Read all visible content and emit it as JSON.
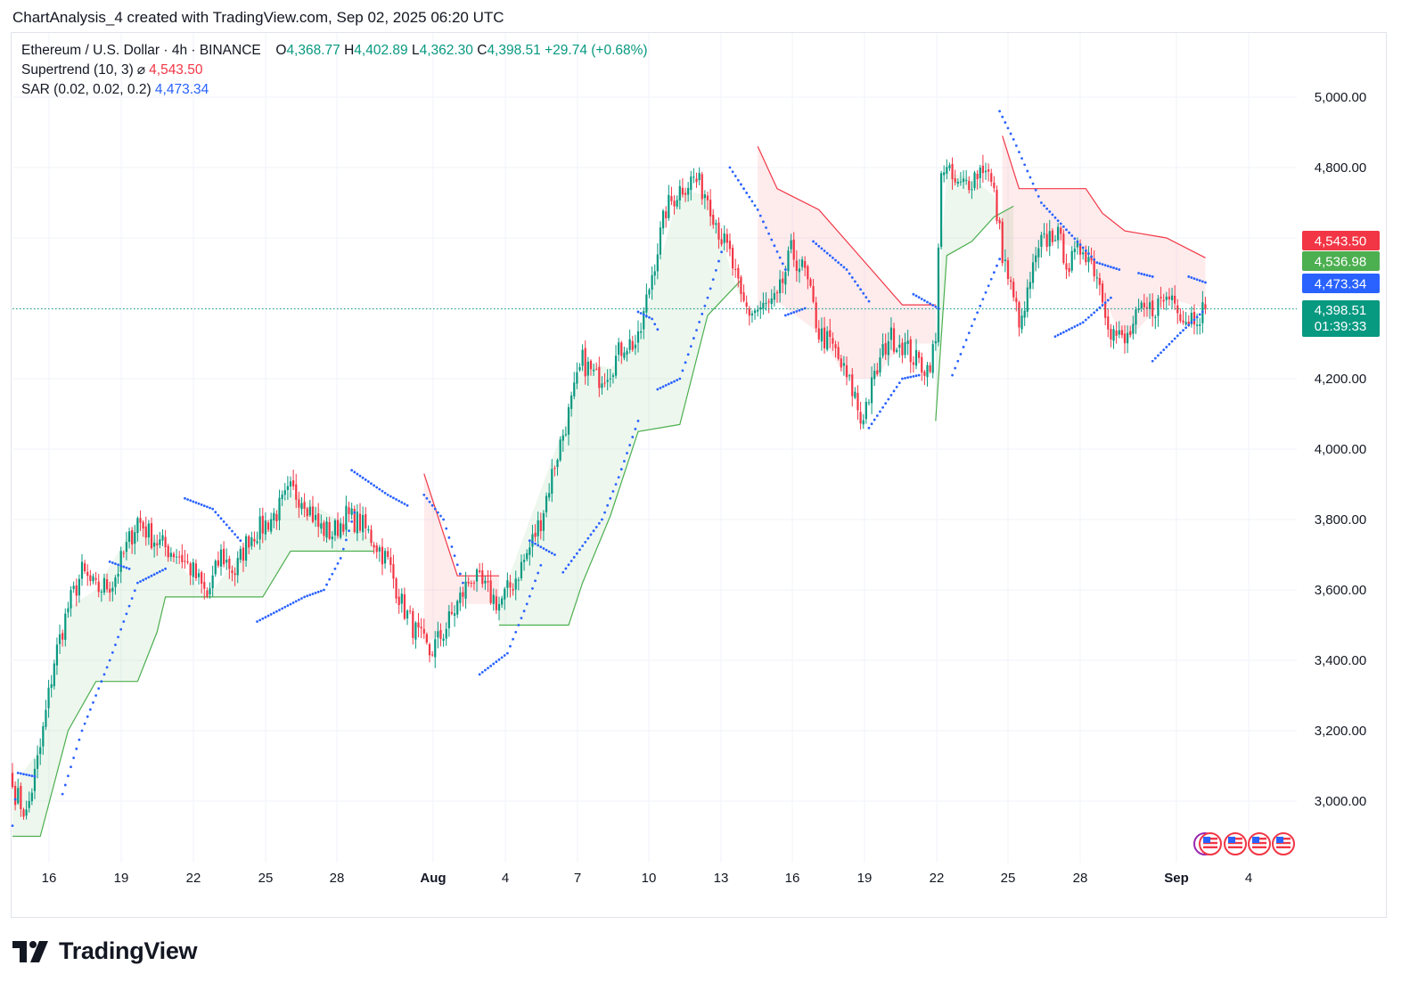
{
  "header": {
    "created_by": "ChartAnalysis_4 created with TradingView.com, Sep 02, 2025 06:20 UTC"
  },
  "legend": {
    "symbol": "Ethereum / U.S. Dollar · 4h · BINANCE",
    "o_label": "O",
    "o_value": "4,368.77",
    "h_label": "H",
    "h_value": "4,402.89",
    "l_label": "L",
    "l_value": "4,362.30",
    "c_label": "C",
    "c_value": "4,398.51",
    "change": "+29.74 (+0.68%)",
    "supertrend_label": "Supertrend (10, 3)",
    "supertrend_symbol": "⌀",
    "supertrend_value": "4,543.50",
    "sar_label": "SAR (0.02, 0.02, 0.2)",
    "sar_value": "4,473.34"
  },
  "price_tags": {
    "supertrend_red": "4,543.50",
    "supertrend_green": "4,536.98",
    "sar": "4,473.34",
    "last_price": "4,398.51",
    "countdown": "01:39:33"
  },
  "colors": {
    "up": "#089981",
    "down": "#f23645",
    "supertrend_up": "#4caf50",
    "supertrend_down": "#f23645",
    "sar": "#2962ff",
    "grid": "#f0f3fa"
  },
  "footer": {
    "logo_text": "TradingView"
  },
  "chart_data": {
    "type": "candlestick",
    "ylim": [
      2870,
      5120
    ],
    "y_ticks": [
      "3,000.00",
      "3,200.00",
      "3,400.00",
      "3,600.00",
      "3,800.00",
      "4,000.00",
      "4,200.00",
      "4,400.00",
      "4,600.00",
      "4,800.00",
      "5,000.00"
    ],
    "x_ticks": [
      "16",
      "19",
      "22",
      "25",
      "28",
      "Aug",
      "4",
      "7",
      "10",
      "13",
      "16",
      "19",
      "22",
      "25",
      "28",
      "Sep",
      "4"
    ],
    "x_ticks_bold": [
      "Aug",
      "Sep"
    ],
    "grid": true,
    "last_price": 4398.51,
    "close_path": [
      [
        0,
        3040
      ],
      [
        5,
        2960
      ],
      [
        10,
        3150
      ],
      [
        15,
        3400
      ],
      [
        20,
        3550
      ],
      [
        25,
        3650
      ],
      [
        30,
        3600
      ],
      [
        36,
        3620
      ],
      [
        40,
        3700
      ],
      [
        45,
        3800
      ],
      [
        50,
        3750
      ],
      [
        55,
        3720
      ],
      [
        60,
        3700
      ],
      [
        65,
        3650
      ],
      [
        70,
        3580
      ],
      [
        75,
        3700
      ],
      [
        80,
        3650
      ],
      [
        85,
        3750
      ],
      [
        90,
        3780
      ],
      [
        95,
        3820
      ],
      [
        100,
        3880
      ],
      [
        105,
        3860
      ],
      [
        110,
        3780
      ],
      [
        115,
        3760
      ],
      [
        120,
        3810
      ],
      [
        125,
        3790
      ],
      [
        130,
        3740
      ],
      [
        135,
        3680
      ],
      [
        140,
        3560
      ],
      [
        145,
        3480
      ],
      [
        150,
        3420
      ],
      [
        155,
        3480
      ],
      [
        160,
        3560
      ],
      [
        165,
        3640
      ],
      [
        170,
        3600
      ],
      [
        175,
        3560
      ],
      [
        180,
        3620
      ],
      [
        185,
        3700
      ],
      [
        190,
        3800
      ],
      [
        195,
        3960
      ],
      [
        200,
        4100
      ],
      [
        205,
        4250
      ],
      [
        210,
        4200
      ],
      [
        215,
        4230
      ],
      [
        220,
        4300
      ],
      [
        225,
        4300
      ],
      [
        230,
        4500
      ],
      [
        235,
        4680
      ],
      [
        240,
        4740
      ],
      [
        245,
        4770
      ],
      [
        250,
        4720
      ],
      [
        255,
        4600
      ],
      [
        258,
        4550
      ],
      [
        262,
        4420
      ],
      [
        265,
        4390
      ],
      [
        270,
        4400
      ],
      [
        275,
        4420
      ],
      [
        280,
        4560
      ],
      [
        285,
        4500
      ],
      [
        290,
        4330
      ],
      [
        295,
        4290
      ],
      [
        300,
        4200
      ],
      [
        303,
        4150
      ],
      [
        305,
        4080
      ],
      [
        310,
        4200
      ],
      [
        315,
        4320
      ],
      [
        320,
        4300
      ],
      [
        325,
        4250
      ],
      [
        329,
        4230
      ],
      [
        332,
        4300
      ],
      [
        334,
        4810
      ],
      [
        340,
        4740
      ],
      [
        345,
        4770
      ],
      [
        350,
        4810
      ],
      [
        353,
        4720
      ],
      [
        356,
        4560
      ],
      [
        360,
        4420
      ],
      [
        363,
        4350
      ],
      [
        366,
        4480
      ],
      [
        370,
        4580
      ],
      [
        375,
        4620
      ],
      [
        380,
        4520
      ],
      [
        385,
        4580
      ],
      [
        390,
        4500
      ],
      [
        395,
        4340
      ],
      [
        400,
        4300
      ],
      [
        405,
        4380
      ],
      [
        410,
        4400
      ],
      [
        415,
        4430
      ],
      [
        418,
        4440
      ],
      [
        421,
        4370
      ],
      [
        425,
        4380
      ],
      [
        429,
        4398.51
      ]
    ],
    "supertrend": [
      {
        "dir": "up",
        "points": [
          [
            0,
            2900
          ],
          [
            10,
            2900
          ],
          [
            20,
            3200
          ],
          [
            30,
            3340
          ],
          [
            45,
            3340
          ],
          [
            52,
            3480
          ],
          [
            55,
            3580
          ],
          [
            70,
            3580
          ],
          [
            90,
            3580
          ],
          [
            100,
            3710
          ],
          [
            130,
            3710
          ]
        ]
      },
      {
        "dir": "down",
        "points": [
          [
            148,
            3930
          ],
          [
            155,
            3760
          ],
          [
            160,
            3640
          ],
          [
            175,
            3640
          ]
        ]
      },
      {
        "dir": "up",
        "points": [
          [
            175,
            3500
          ],
          [
            200,
            3500
          ],
          [
            205,
            3620
          ],
          [
            215,
            3810
          ],
          [
            225,
            4050
          ],
          [
            240,
            4070
          ],
          [
            250,
            4380
          ],
          [
            262,
            4480
          ]
        ]
      },
      {
        "dir": "down",
        "points": [
          [
            268,
            4860
          ],
          [
            275,
            4740
          ],
          [
            290,
            4680
          ],
          [
            300,
            4590
          ],
          [
            310,
            4500
          ],
          [
            320,
            4410
          ],
          [
            332,
            4410
          ]
        ]
      },
      {
        "dir": "up",
        "points": [
          [
            332,
            4080
          ],
          [
            336,
            4550
          ],
          [
            345,
            4590
          ],
          [
            353,
            4660
          ],
          [
            360,
            4690
          ]
        ]
      },
      {
        "dir": "down",
        "points": [
          [
            356,
            4890
          ],
          [
            362,
            4740
          ],
          [
            372,
            4740
          ],
          [
            386,
            4740
          ],
          [
            392,
            4670
          ],
          [
            400,
            4620
          ],
          [
            415,
            4600
          ],
          [
            429,
            4543.5
          ]
        ]
      }
    ],
    "sar": [
      {
        "side": "below",
        "points": [
          [
            0,
            2930
          ],
          [
            2,
            3080
          ],
          [
            8,
            3070
          ]
        ]
      },
      {
        "side": "below",
        "points": [
          [
            18,
            3020
          ],
          [
            25,
            3200
          ],
          [
            35,
            3400
          ],
          [
            45,
            3620
          ],
          [
            55,
            3660
          ]
        ]
      },
      {
        "side": "above",
        "points": [
          [
            35,
            3680
          ],
          [
            42,
            3660
          ]
        ]
      },
      {
        "side": "above",
        "points": [
          [
            62,
            3860
          ],
          [
            72,
            3830
          ],
          [
            82,
            3740
          ]
        ]
      },
      {
        "side": "below",
        "points": [
          [
            88,
            3510
          ],
          [
            105,
            3580
          ],
          [
            112,
            3600
          ],
          [
            118,
            3690
          ],
          [
            123,
            3820
          ]
        ]
      },
      {
        "side": "above",
        "points": [
          [
            122,
            3940
          ],
          [
            135,
            3870
          ],
          [
            142,
            3840
          ]
        ]
      },
      {
        "side": "above",
        "points": [
          [
            148,
            3870
          ],
          [
            155,
            3800
          ],
          [
            162,
            3620
          ]
        ]
      },
      {
        "side": "below",
        "points": [
          [
            168,
            3360
          ],
          [
            178,
            3420
          ],
          [
            185,
            3560
          ],
          [
            190,
            3670
          ]
        ]
      },
      {
        "side": "above",
        "points": [
          [
            186,
            3740
          ],
          [
            195,
            3700
          ]
        ]
      },
      {
        "side": "below",
        "points": [
          [
            198,
            3650
          ],
          [
            212,
            3800
          ],
          [
            218,
            3920
          ],
          [
            225,
            4080
          ]
        ]
      },
      {
        "side": "above",
        "points": [
          [
            225,
            4390
          ],
          [
            230,
            4370
          ],
          [
            232,
            4340
          ]
        ]
      },
      {
        "side": "below",
        "points": [
          [
            232,
            4170
          ],
          [
            240,
            4200
          ],
          [
            250,
            4430
          ],
          [
            255,
            4560
          ]
        ]
      },
      {
        "side": "above",
        "points": [
          [
            258,
            4800
          ],
          [
            268,
            4680
          ],
          [
            278,
            4510
          ]
        ]
      },
      {
        "side": "below",
        "points": [
          [
            278,
            4380
          ],
          [
            285,
            4400
          ]
        ]
      },
      {
        "side": "above",
        "points": [
          [
            288,
            4590
          ],
          [
            300,
            4510
          ],
          [
            308,
            4420
          ]
        ]
      },
      {
        "side": "below",
        "points": [
          [
            308,
            4060
          ],
          [
            320,
            4200
          ],
          [
            326,
            4210
          ]
        ]
      },
      {
        "side": "above",
        "points": [
          [
            324,
            4440
          ],
          [
            333,
            4400
          ]
        ]
      },
      {
        "side": "below",
        "points": [
          [
            338,
            4210
          ],
          [
            345,
            4350
          ],
          [
            355,
            4540
          ]
        ]
      },
      {
        "side": "above",
        "points": [
          [
            355,
            4960
          ],
          [
            360,
            4880
          ],
          [
            370,
            4700
          ],
          [
            390,
            4530
          ],
          [
            398,
            4510
          ]
        ]
      },
      {
        "side": "below",
        "points": [
          [
            375,
            4320
          ],
          [
            385,
            4360
          ],
          [
            395,
            4430
          ]
        ]
      },
      {
        "side": "above",
        "points": [
          [
            405,
            4500
          ],
          [
            410,
            4490
          ]
        ]
      },
      {
        "side": "below",
        "points": [
          [
            410,
            4250
          ],
          [
            420,
            4330
          ],
          [
            428,
            4390
          ]
        ]
      },
      {
        "side": "above",
        "points": [
          [
            423,
            4490
          ],
          [
            429,
            4473.34
          ]
        ]
      }
    ]
  }
}
